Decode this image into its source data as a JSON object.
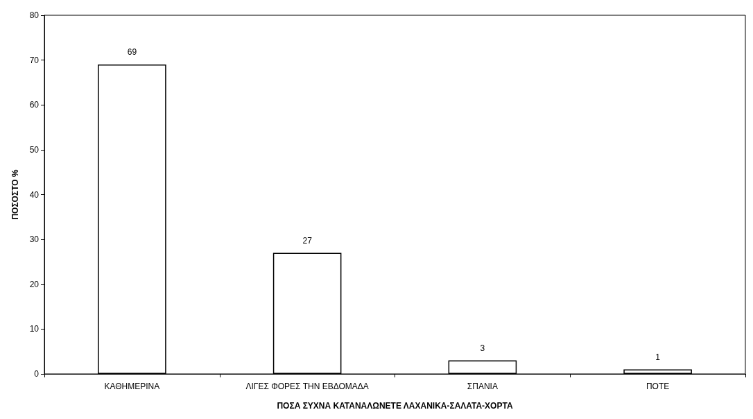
{
  "chart_data": {
    "type": "bar",
    "xlabel": "ΠΟΣΑ ΣΥΧΝΑ ΚΑΤΑΝΑΛΩΝΕΤΕ ΛΑΧΑΝΙΚΑ-ΣΑΛΑΤΑ-ΧΟΡΤΑ",
    "ylabel": "ΠΟΣΟΣΤΟ %",
    "categories": [
      "ΚΑΘΗΜΕΡΙΝΑ",
      "ΛΙΓΕΣ ΦΟΡΕΣ ΤΗΝ ΕΒΔΟΜΑΔΑ",
      "ΣΠΑΝΙΑ",
      "ΠΟΤΕ"
    ],
    "values": [
      69,
      27,
      3,
      1
    ],
    "color": "#ffffff",
    "ylim": [
      0,
      80
    ],
    "yticks": [
      0,
      10,
      20,
      30,
      40,
      50,
      60,
      70,
      80
    ],
    "grid": false,
    "data_labels": true
  }
}
